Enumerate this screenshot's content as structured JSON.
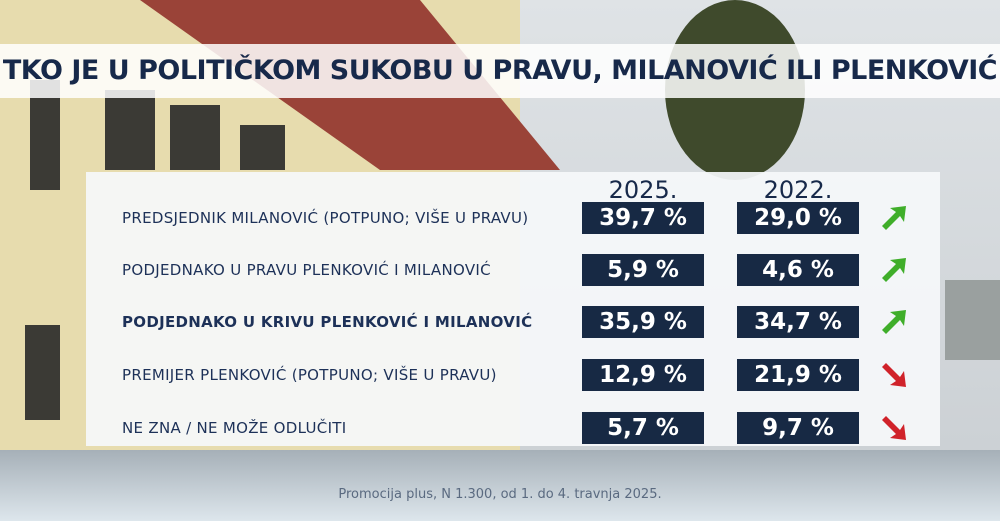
{
  "title": "TKO JE U POLITIČKOM SUKOBU U PRAVU, MILANOVIĆ ILI PLENKOVIĆ",
  "table": {
    "columns": [
      "2025.",
      "2022."
    ],
    "rows": [
      [
        "PREDSJEDNIK MILANOVIĆ (POTPUNO; VIŠE U PRAVU)",
        "39,7 %",
        "29,0 %"
      ],
      [
        "PODJEDNAKO U PRAVU PLENKOVIĆ I MILANOVIĆ",
        "5,9 %",
        "4,6 %"
      ],
      [
        "PODJEDNAKO U KRIVU PLENKOVIĆ I MILANOVIĆ",
        "35,9 %",
        "34,7 %"
      ],
      [
        "PREMIJER PLENKOVIĆ (POTPUNO; VIŠE U PRAVU)",
        "12,9 %",
        "21,9 %"
      ],
      [
        "NE ZNA / NE MOŽE ODLUČITI",
        "5,7 %",
        "9,7 %"
      ]
    ]
  },
  "footer": "Promocija plus, N 1.300, od 1. do 4. travnja 2025."
}
